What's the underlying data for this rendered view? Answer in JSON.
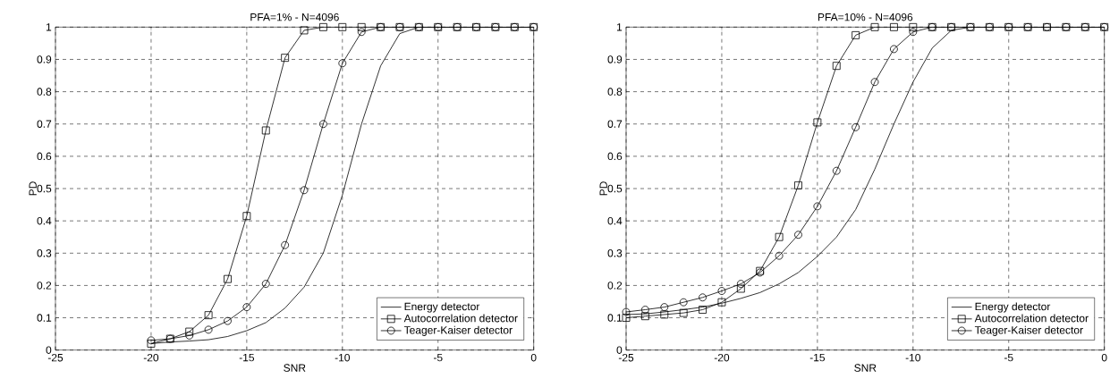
{
  "chart_data": [
    {
      "type": "line",
      "title": "PFA=1% - N=4096",
      "xlabel": "SNR",
      "ylabel": "PD",
      "xlim": [
        -25,
        0
      ],
      "ylim": [
        0,
        1
      ],
      "xticks": [
        -25,
        -20,
        -15,
        -10,
        -5,
        0
      ],
      "yticks": [
        0,
        0.1,
        0.2,
        0.3,
        0.4,
        0.5,
        0.6,
        0.7,
        0.8,
        0.9,
        1
      ],
      "grid": true,
      "legend": "bottom right",
      "x": [
        -20,
        -19,
        -18,
        -17,
        -16,
        -15,
        -14,
        -13,
        -12,
        -11,
        -10,
        -9,
        -8,
        -7,
        -6,
        -5,
        -4,
        -3,
        -2,
        -1,
        0
      ],
      "series": [
        {
          "name": "Energy detector",
          "color": "#000000",
          "marker": "none",
          "values": [
            0.02,
            0.025,
            0.028,
            0.032,
            0.042,
            0.06,
            0.085,
            0.13,
            0.195,
            0.3,
            0.48,
            0.7,
            0.88,
            0.98,
            1,
            1,
            1,
            1,
            1,
            1,
            1
          ]
        },
        {
          "name": "Autocorrelation detector",
          "color": "#000000",
          "marker": "square",
          "values": [
            0.02,
            0.035,
            0.057,
            0.108,
            0.22,
            0.415,
            0.68,
            0.905,
            0.99,
            1,
            1,
            1,
            1,
            1,
            1,
            1,
            1,
            1,
            1,
            1,
            1
          ]
        },
        {
          "name": "Teager-Kaiser detector",
          "color": "#000000",
          "marker": "circle",
          "values": [
            0.03,
            0.035,
            0.045,
            0.063,
            0.09,
            0.133,
            0.205,
            0.325,
            0.495,
            0.7,
            0.888,
            0.985,
            1,
            1,
            1,
            1,
            1,
            1,
            1,
            1,
            1
          ]
        }
      ]
    },
    {
      "type": "line",
      "title": "PFA=10% - N=4096",
      "xlabel": "SNR",
      "ylabel": "PD",
      "xlim": [
        -25,
        0
      ],
      "ylim": [
        0,
        1
      ],
      "xticks": [
        -25,
        -20,
        -15,
        -10,
        -5,
        0
      ],
      "yticks": [
        0,
        0.1,
        0.2,
        0.3,
        0.4,
        0.5,
        0.6,
        0.7,
        0.8,
        0.9,
        1
      ],
      "grid": true,
      "legend": "bottom right",
      "x": [
        -25,
        -24,
        -23,
        -22,
        -21,
        -20,
        -19,
        -18,
        -17,
        -16,
        -15,
        -14,
        -13,
        -12,
        -11,
        -10,
        -9,
        -8,
        -7,
        -6,
        -5,
        -4,
        -3,
        -2,
        -1,
        0
      ],
      "series": [
        {
          "name": "Energy detector",
          "color": "#000000",
          "marker": "none",
          "values": [
            0.11,
            0.112,
            0.118,
            0.125,
            0.133,
            0.145,
            0.16,
            0.178,
            0.205,
            0.24,
            0.29,
            0.35,
            0.435,
            0.56,
            0.7,
            0.83,
            0.935,
            0.99,
            1,
            1,
            1,
            1,
            1,
            1,
            1,
            1
          ]
        },
        {
          "name": "Autocorrelation detector",
          "color": "#000000",
          "marker": "square",
          "values": [
            0.1,
            0.105,
            0.11,
            0.115,
            0.125,
            0.148,
            0.19,
            0.245,
            0.35,
            0.51,
            0.705,
            0.88,
            0.975,
            1,
            1,
            1,
            1,
            1,
            1,
            1,
            1,
            1,
            1,
            1,
            1,
            1
          ]
        },
        {
          "name": "Teager-Kaiser detector",
          "color": "#000000",
          "marker": "circle",
          "values": [
            0.118,
            0.125,
            0.133,
            0.148,
            0.163,
            0.183,
            0.205,
            0.24,
            0.292,
            0.357,
            0.445,
            0.555,
            0.69,
            0.83,
            0.932,
            0.985,
            1,
            1,
            1,
            1,
            1,
            1,
            1,
            1,
            1,
            1
          ]
        }
      ]
    }
  ]
}
